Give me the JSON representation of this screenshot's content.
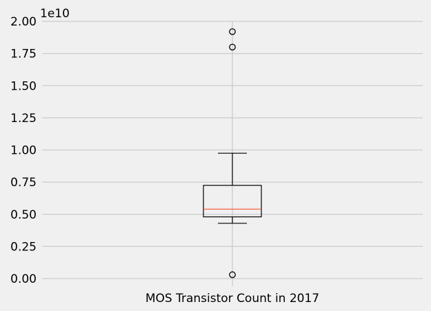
{
  "chart_data": {
    "type": "box",
    "categories": [
      "MOS Transistor Count in 2017"
    ],
    "offset_label": "1e10",
    "yticks": [
      0.0,
      0.25,
      0.5,
      0.75,
      1.0,
      1.25,
      1.5,
      1.75,
      2.0
    ],
    "ytick_labels": [
      "0.00",
      "0.25",
      "0.50",
      "0.75",
      "1.00",
      "1.25",
      "1.50",
      "1.75",
      "2.00"
    ],
    "ylim": [
      -0.1,
      2.0
    ],
    "grid": true,
    "boxes": [
      {
        "label": "MOS Transistor Count in 2017",
        "whisker_low": 0.43,
        "q1": 0.48,
        "median": 0.54,
        "q3": 0.725,
        "whisker_high": 0.975,
        "outliers": [
          0.03,
          1.8,
          1.92
        ]
      }
    ],
    "colors": {
      "box": "#000000",
      "median": "#fc4f30",
      "grid": "#cbcbcb",
      "background": "#f0f0f0"
    }
  }
}
